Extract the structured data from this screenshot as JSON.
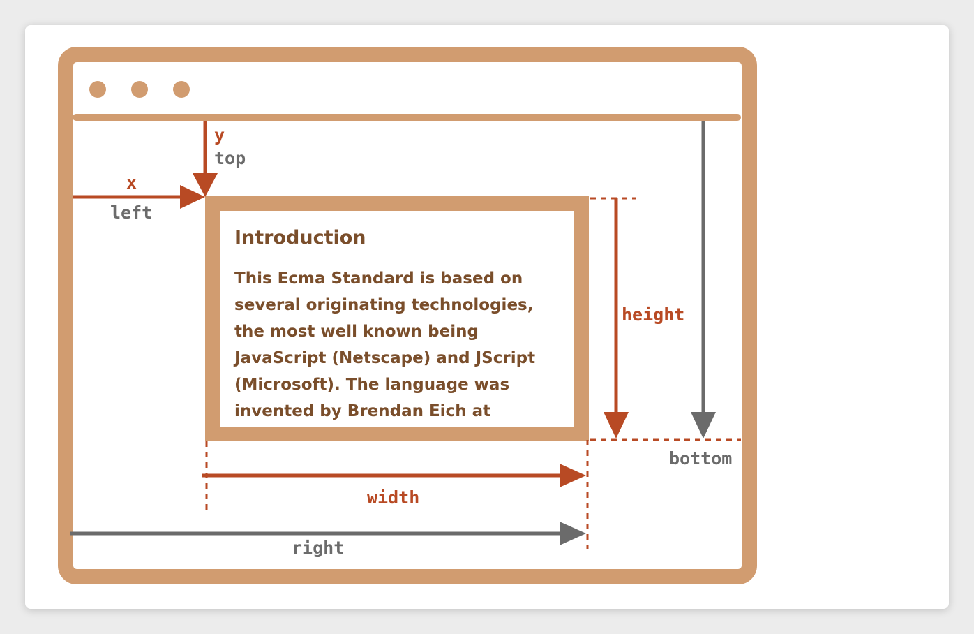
{
  "colors": {
    "frame": "#d19c70",
    "accent": "#b84a24",
    "gray": "#6b6b6b",
    "content_text": "#7a4e2b"
  },
  "icons": [
    "window-dot-icon",
    "window-dot-icon",
    "window-dot-icon"
  ],
  "labels": {
    "y": "y",
    "top": "top",
    "x": "x",
    "left": "left",
    "height": "height",
    "bottom": "bottom",
    "width": "width",
    "right": "right"
  },
  "content": {
    "title": "Introduction",
    "text": "This Ecma Standard is based on\nseveral originating technologies,\nthe most well known being\nJavaScript (Netscape) and JScript\n(Microsoft). The language was\ninvented by Brendan Eich at"
  }
}
